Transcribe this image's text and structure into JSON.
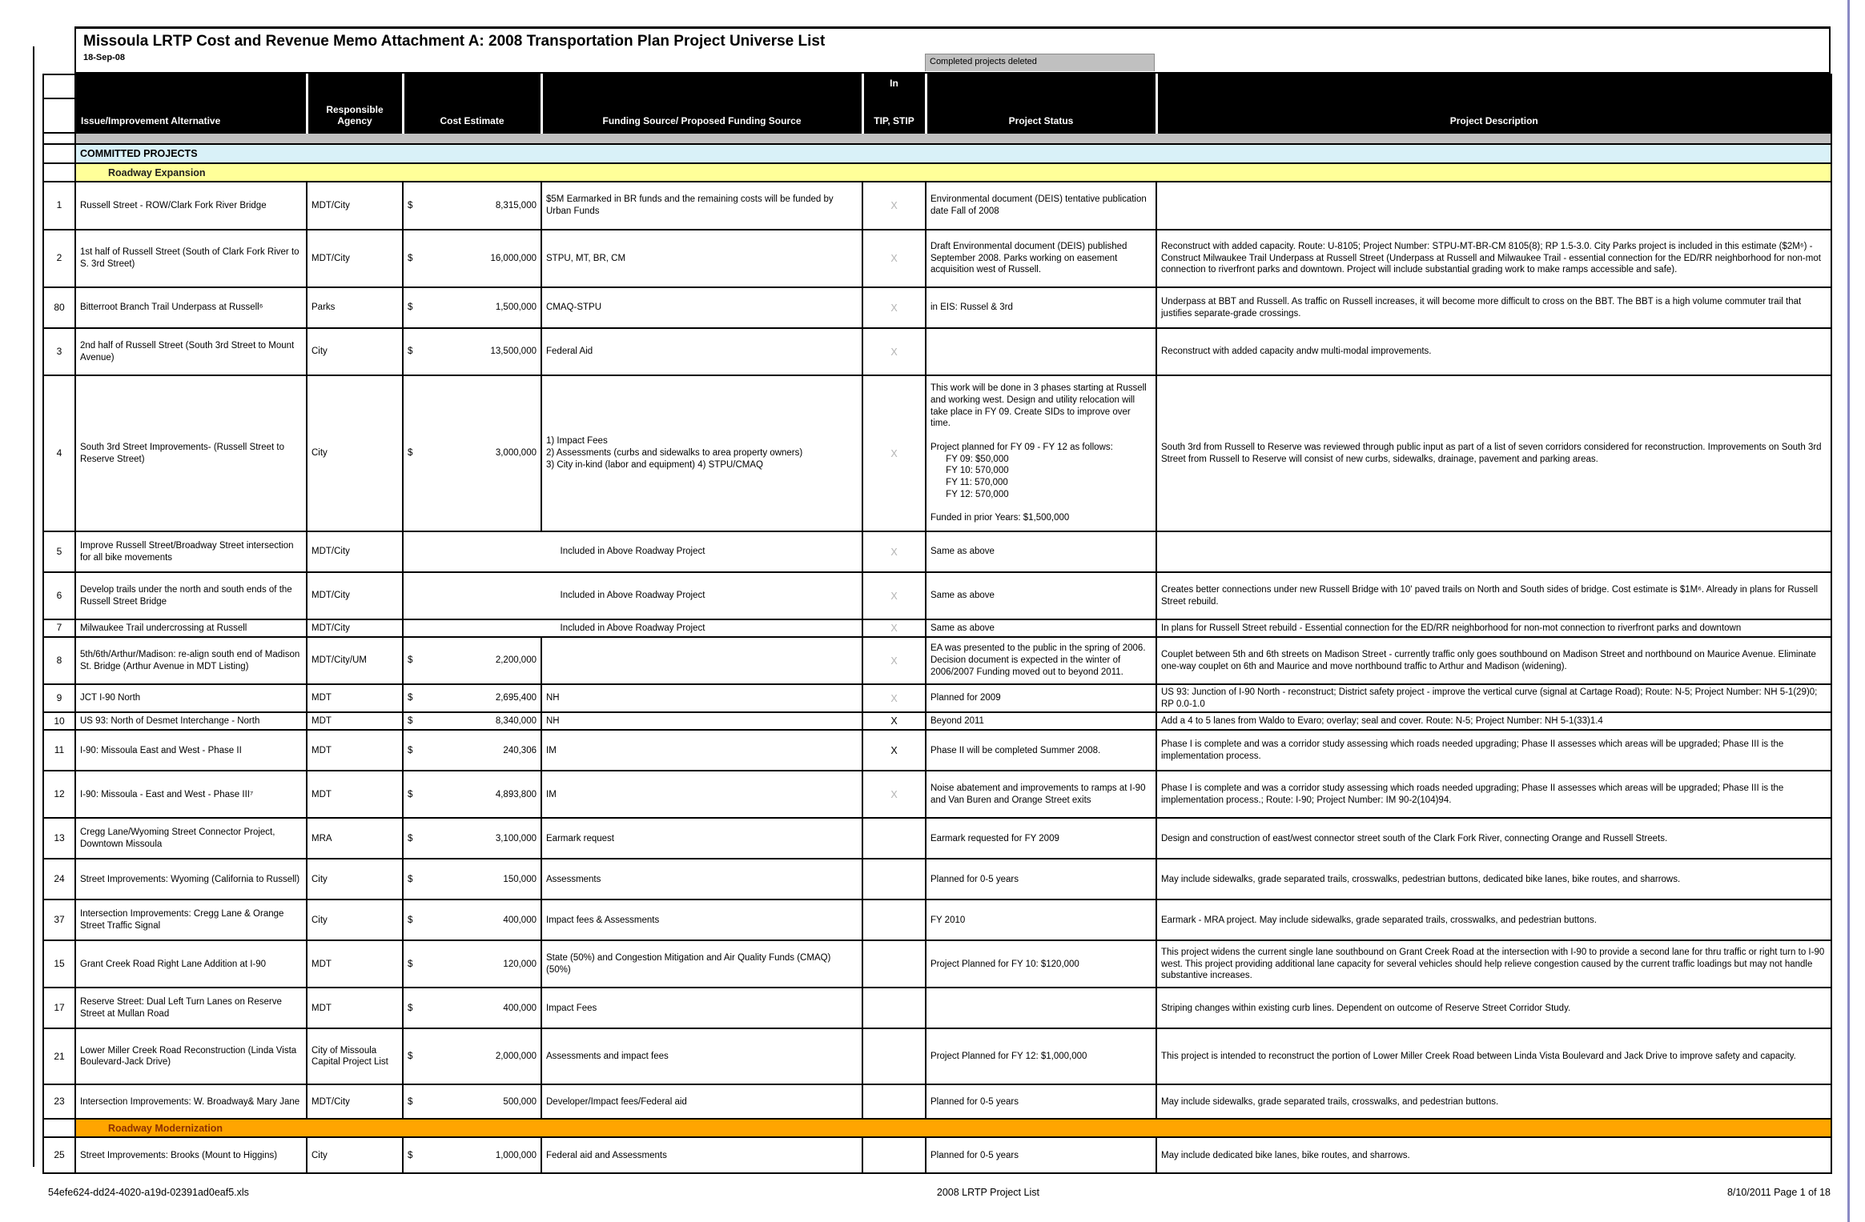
{
  "page": {
    "title": "Missoula LRTP Cost and Revenue Memo Attachment A:  2008 Transportation Plan Project Universe List",
    "date": "18-Sep-08",
    "deleted_note": "Completed projects deleted"
  },
  "columns": {
    "issue": "Issue/Improvement Alternative",
    "agency": "Responsible Agency",
    "cost": "Cost Estimate",
    "funding": "Funding Source/ Proposed Funding Source",
    "tip_top": "In",
    "tip_bottom": "TIP, STIP",
    "status": "Project Status",
    "description": "Project Description"
  },
  "colors": {
    "committed_bg": "#d9f1f8",
    "expansion_bg": "#ffff99",
    "modernization_bg": "#ffa500",
    "modernization_text": "#8b3103",
    "note_bg": "#c0c0c0",
    "x_gray": "#b3b3b3",
    "x_black": "#000000",
    "header_bg": "#000000"
  },
  "rows": [
    {
      "type": "spacer"
    },
    {
      "type": "section",
      "style": "committed",
      "label": "COMMITTED PROJECTS"
    },
    {
      "type": "section",
      "style": "expansion",
      "label": "Roadway Expansion"
    },
    {
      "type": "data",
      "num": "1",
      "issue": "Russell Street - ROW/Clark Fork River Bridge",
      "agency": "MDT/City",
      "currency": "$",
      "cost": "8,315,000",
      "funding": "$5M Earmarked in BR funds and the remaining costs will be funded by Urban Funds",
      "funding_merged": false,
      "tip": "X",
      "tip_shade": "gray",
      "status": "Environmental document (DEIS) tentative publication date Fall of 2008",
      "desc": ""
    },
    {
      "type": "data",
      "num": "2",
      "issue": "1st half of Russell Street (South of Clark Fork River to S. 3rd Street)",
      "agency": "MDT/City",
      "currency": "$",
      "cost": "16,000,000",
      "funding": "STPU, MT, BR, CM",
      "funding_merged": false,
      "tip": "X",
      "tip_shade": "gray",
      "status": "Draft Environmental document (DEIS) published September 2008. Parks working on easement acquisition west of Russell.",
      "desc": "Reconstruct with added capacity. Route: U-8105; Project Number: STPU-MT-BR-CM 8105(8); RP 1.5-3.0. City Parks project is included in this estimate ($2M⁶) - Construct Milwaukee Trail Underpass at Russell Street  (Underpass at Russell and Milwaukee Trail - essential connection for the ED/RR neighborhood for non-mot connection to riverfront parks and downtown. Project will include substantial grading work to make ramps accessible and safe)."
    },
    {
      "type": "data",
      "num": "80",
      "issue": "Bitterroot Branch Trail Underpass at Russell⁶",
      "agency": "Parks",
      "currency": "$",
      "cost": "1,500,000",
      "funding": "CMAQ-STPU",
      "funding_merged": false,
      "tip": "X",
      "tip_shade": "gray",
      "status": "in EIS: Russel & 3rd",
      "desc": "Underpass at BBT and Russell. As traffic on Russell increases, it will become more difficult to cross on the BBT.  The BBT is a high volume commuter trail that justifies separate-grade crossings."
    },
    {
      "type": "data",
      "num": "3",
      "issue": "2nd half of Russell Street (South 3rd Street to Mount Avenue)",
      "agency": "City",
      "currency": "$",
      "cost": "13,500,000",
      "funding": "Federal Aid",
      "funding_merged": false,
      "tip": "X",
      "tip_shade": "gray",
      "status": "",
      "desc": "Reconstruct with added capacity andw multi-modal improvements."
    },
    {
      "type": "data",
      "num": "4",
      "issue": "South 3rd Street Improvements- (Russell Street to Reserve Street)",
      "agency": "City",
      "currency": "$",
      "cost": "3,000,000",
      "funding": "1) Impact Fees\n2) Assessments (curbs and sidewalks to area property owners)\n3) City in-kind (labor and equipment) 4) STPU/CMAQ",
      "funding_merged": false,
      "tip": "X",
      "tip_shade": "gray",
      "status": "This work will be done in 3 phases starting at Russell and working west. Design and utility relocation will take place in FY 09. Create SIDs to improve over time.\n\nProject planned for FY 09 - FY 12 as follows:\n      FY 09: $50,000\n      FY 10: 570,000\n      FY 11: 570,000\n      FY 12: 570,000\n\nFunded in prior Years: $1,500,000",
      "desc": "South 3rd from Russell to Reserve was reviewed through public input as part of a list of seven corridors considered for reconstruction.  Improvements on South 3rd Street from Russell to Reserve will consist of new curbs, sidewalks, drainage, pavement and parking areas."
    },
    {
      "type": "data",
      "num": "5",
      "issue": "Improve Russell Street/Broadway Street intersection for all bike movements",
      "agency": "MDT/City",
      "currency": "",
      "cost": "",
      "funding": "Included in Above Roadway Project",
      "funding_merged": true,
      "tip": "X",
      "tip_shade": "gray",
      "status": "Same as above",
      "desc": ""
    },
    {
      "type": "data",
      "num": "6",
      "issue": "Develop trails under the north and south ends of the Russell Street Bridge",
      "agency": "MDT/City",
      "currency": "",
      "cost": "",
      "funding": "Included in Above Roadway Project",
      "funding_merged": true,
      "tip": "X",
      "tip_shade": "gray",
      "status": "Same as above",
      "desc": "Creates better connections under new Russell Bridge with 10' paved trails on North and South sides of bridge. Cost estimate is $1M⁶.  Already in plans for Russell Street rebuild."
    },
    {
      "type": "data",
      "num": "7",
      "issue": "Milwaukee Trail undercrossing at Russell",
      "agency": "MDT/City",
      "currency": "",
      "cost": "",
      "funding": "Included in Above Roadway Project",
      "funding_merged": true,
      "tip": "X",
      "tip_shade": "gray",
      "status": "Same as above",
      "desc": "In plans for Russell Street rebuild - Essential connection for the ED/RR neighborhood for non-mot connection to riverfront parks and downtown"
    },
    {
      "type": "data",
      "num": "8",
      "issue": "5th/6th/Arthur/Madison: re-align south end of Madison St. Bridge (Arthur Avenue in MDT Listing)",
      "agency": "MDT/City/UM",
      "currency": "$",
      "cost": "2,200,000",
      "funding": "",
      "funding_merged": false,
      "tip": "X",
      "tip_shade": "gray",
      "status": "EA was presented to the public in the spring of 2006. Decision document is expected in the winter of 2006/2007 Funding moved out to beyond 2011.",
      "desc": "Couplet between 5th and 6th streets on Madison Street - currently traffic only goes southbound on Madison Street and northbound on Maurice Avenue. Eliminate one-way couplet on 6th and Maurice and move northbound traffic to Arthur and Madison (widening)."
    },
    {
      "type": "data",
      "num": "9",
      "issue": "JCT I-90 North",
      "agency": "MDT",
      "currency": "$",
      "cost": "2,695,400",
      "funding": "NH",
      "funding_merged": false,
      "tip": "X",
      "tip_shade": "gray",
      "status": "Planned for 2009",
      "desc": "US 93:  Junction of I-90 North - reconstruct; District safety project - improve the vertical curve (signal at Cartage Road); Route: N-5; Project Number: NH 5-1(29)0; RP 0.0-1.0"
    },
    {
      "type": "data",
      "num": "10",
      "issue": "US 93: North of Desmet Interchange - North",
      "agency": "MDT",
      "currency": "$",
      "cost": "8,340,000",
      "funding": "NH",
      "funding_merged": false,
      "tip": "X",
      "tip_shade": "black",
      "status": "Beyond 2011",
      "desc": "Add a 4 to 5 lanes from Waldo to Evaro; overlay; seal and cover. Route: N-5; Project Number: NH 5-1(33)1.4"
    },
    {
      "type": "data",
      "num": "11",
      "issue": "I-90:  Missoula East and West - Phase II",
      "agency": "MDT",
      "currency": "$",
      "cost": "240,306",
      "funding": "IM",
      "funding_merged": false,
      "tip": "X",
      "tip_shade": "black",
      "status": "Phase II will be completed Summer 2008.",
      "desc": "Phase I is complete and was a corridor study assessing which roads needed upgrading; Phase II assesses which areas will be upgraded; Phase III is the implementation process."
    },
    {
      "type": "data",
      "num": "12",
      "issue": "I-90: Missoula - East and West - Phase III⁷",
      "agency": "MDT",
      "currency": "$",
      "cost": "4,893,800",
      "funding": "IM",
      "funding_merged": false,
      "tip": "X",
      "tip_shade": "gray",
      "status": "Noise abatement and improvements to ramps at I-90 and Van Buren and Orange Street exits",
      "desc": "Phase I is complete and was a corridor study assessing which roads needed upgrading; Phase II assesses which areas will be upgraded; Phase III is the implementation process.; Route: I-90; Project Number: IM 90-2(104)94."
    },
    {
      "type": "data",
      "num": "13",
      "issue": "Cregg Lane/Wyoming Street Connector Project, Downtown Missoula",
      "agency": "MRA",
      "currency": "$",
      "cost": "3,100,000",
      "funding": "Earmark request",
      "funding_merged": false,
      "tip": "",
      "tip_shade": "",
      "status": "Earmark requested for FY 2009",
      "desc": "Design and construction of east/west connector street south of the Clark Fork River, connecting Orange and Russell Streets."
    },
    {
      "type": "data",
      "num": "24",
      "issue": "Street Improvements: Wyoming (California to Russell)",
      "agency": "City",
      "currency": "$",
      "cost": "150,000",
      "funding": "Assessments",
      "funding_merged": false,
      "tip": "",
      "tip_shade": "",
      "status": "Planned for 0-5 years",
      "desc": "May include sidewalks, grade separated trails, crosswalks, pedestrian buttons, dedicated bike lanes, bike routes, and sharrows."
    },
    {
      "type": "data",
      "num": "37",
      "issue": "Intersection Improvements: Cregg Lane & Orange Street Traffic Signal",
      "agency": "City",
      "currency": "$",
      "cost": "400,000",
      "funding": "Impact fees & Assessments",
      "funding_merged": false,
      "tip": "",
      "tip_shade": "",
      "status": "FY 2010",
      "desc": "Earmark - MRA project. May include sidewalks, grade separated trails, crosswalks, and pedestrian buttons."
    },
    {
      "type": "data",
      "num": "15",
      "issue": "Grant Creek Road Right Lane Addition at I-90",
      "agency": "MDT",
      "currency": "$",
      "cost": "120,000",
      "funding": "State (50%) and Congestion Mitigation and Air Quality Funds (CMAQ) (50%)",
      "funding_merged": false,
      "tip": "",
      "tip_shade": "",
      "status": "Project Planned for FY 10: $120,000",
      "desc": "This project widens the current single lane southbound on Grant Creek Road at the intersection with I-90 to provide a second lane for thru traffic or right turn to I-90 west. This project providing additional lane capacity for several vehicles should help relieve congestion caused by the current traffic loadings but may not handle substantive increases."
    },
    {
      "type": "data",
      "num": "17",
      "issue": "Reserve Street:  Dual Left Turn Lanes on Reserve Street at Mullan Road",
      "agency": "MDT",
      "currency": "$",
      "cost": "400,000",
      "funding": "Impact Fees",
      "funding_merged": false,
      "tip": "",
      "tip_shade": "",
      "status": "",
      "desc": "Striping changes within existing curb lines.  Dependent on outcome of Reserve Street Corridor Study."
    },
    {
      "type": "data",
      "num": "21",
      "issue": "Lower Miller Creek Road Reconstruction (Linda Vista Boulevard-Jack Drive)",
      "agency": "City of Missoula Capital Project List",
      "currency": "$",
      "cost": "2,000,000",
      "funding": "Assessments and impact fees",
      "funding_merged": false,
      "tip": "",
      "tip_shade": "",
      "status": "Project Planned for FY 12: $1,000,000",
      "desc": "This project is intended to reconstruct the portion of Lower Miller Creek Road between Linda Vista Boulevard and Jack Drive to improve safety and capacity."
    },
    {
      "type": "data",
      "num": "23",
      "issue": "Intersection Improvements: W. Broadway& Mary Jane",
      "agency": "MDT/City",
      "currency": "$",
      "cost": "500,000",
      "funding": "Developer/Impact fees/Federal aid",
      "funding_merged": false,
      "tip": "",
      "tip_shade": "",
      "status": "Planned for 0-5 years",
      "desc": "May include sidewalks, grade separated trails, crosswalks, and pedestrian buttons."
    },
    {
      "type": "section",
      "style": "modernization",
      "label": "Roadway Modernization"
    },
    {
      "type": "data",
      "num": "25",
      "issue": "Street Improvements: Brooks (Mount to Higgins)",
      "agency": "City",
      "currency": "$",
      "cost": "1,000,000",
      "funding": "Federal aid and Assessments",
      "funding_merged": false,
      "tip": "",
      "tip_shade": "",
      "status": "Planned for 0-5 years",
      "desc": "May include dedicated bike lanes, bike routes, and sharrows."
    }
  ],
  "footer": {
    "left": "54efe624-dd24-4020-a19d-02391ad0eaf5.xls",
    "center": "2008 LRTP Project List",
    "right": "8/10/2011 Page 1 of 18"
  }
}
